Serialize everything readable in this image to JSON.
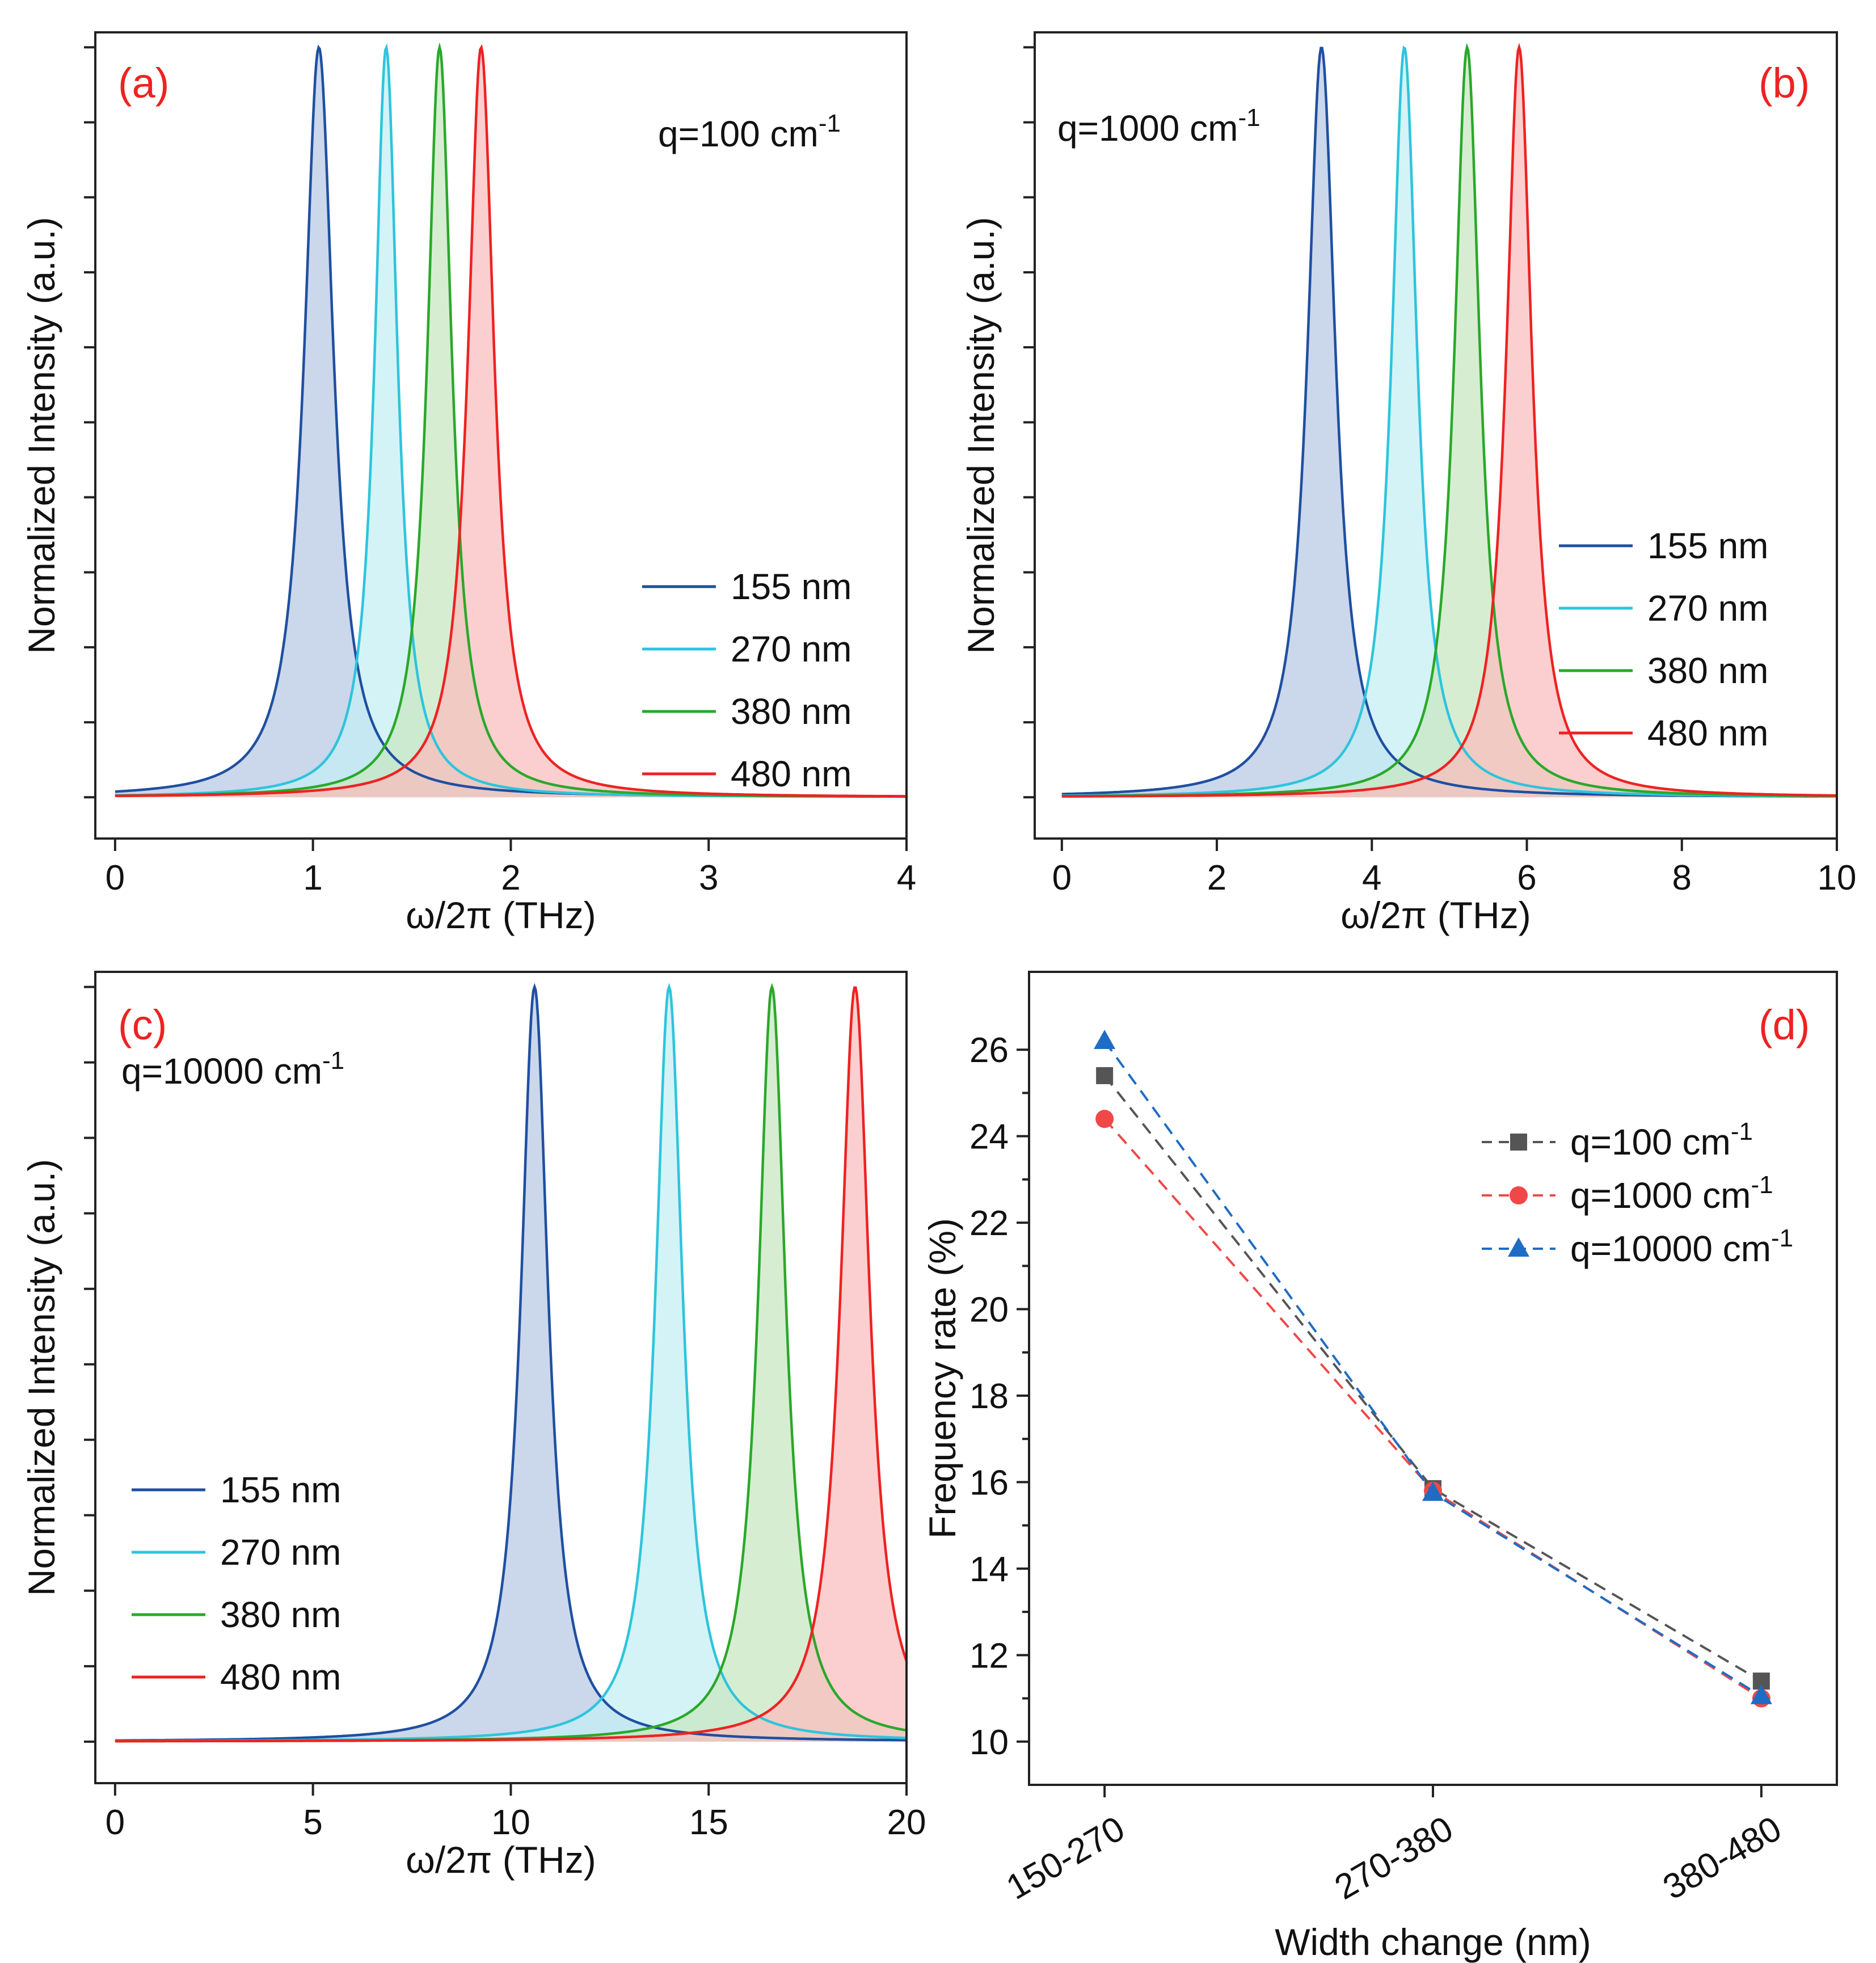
{
  "chart_data": [
    {
      "type": "line",
      "panel": "(a)",
      "annotation": {
        "base": "q=100 cm",
        "sup": "-1"
      },
      "xlabel": "ω/2π (THz)",
      "ylabel": "Normalized Intensity (a.u.)",
      "xlim": [
        -0.1,
        4.0
      ],
      "ylim": [
        -0.055,
        1.02
      ],
      "x_ticks": [
        "0",
        "1",
        "2",
        "3",
        "4"
      ],
      "x_tick_values": [
        0,
        1,
        2,
        3,
        4
      ],
      "legend_position": "bottom-right",
      "series": [
        {
          "name": "155 nm",
          "color": "#1f4fa0",
          "fill": "#b7c8e3",
          "peak": 1.03,
          "hwhm": 0.09
        },
        {
          "name": "270 nm",
          "color": "#2ec4dc",
          "fill": "#c4eef4",
          "peak": 1.37,
          "hwhm": 0.07
        },
        {
          "name": "380 nm",
          "color": "#2aa82a",
          "fill": "#c8e6c0",
          "peak": 1.64,
          "hwhm": 0.075
        },
        {
          "name": "480 nm",
          "color": "#ee2222",
          "fill": "#f9bcbc",
          "peak": 1.85,
          "hwhm": 0.08
        }
      ]
    },
    {
      "type": "line",
      "panel": "(b)",
      "annotation": {
        "base": "q=1000 cm",
        "sup": "-1"
      },
      "xlabel": "ω/2π (THz)",
      "ylabel": "Normalized Intensity (a.u.)",
      "xlim": [
        -0.35,
        10.0
      ],
      "ylim": [
        -0.055,
        1.02
      ],
      "x_ticks": [
        "0",
        "2",
        "4",
        "6",
        "8",
        "10"
      ],
      "x_tick_values": [
        0,
        2,
        4,
        6,
        8,
        10
      ],
      "legend_position": "center-right",
      "series": [
        {
          "name": "155 nm",
          "color": "#1f4fa0",
          "fill": "#b7c8e3",
          "peak": 3.35,
          "hwhm": 0.22
        },
        {
          "name": "270 nm",
          "color": "#2ec4dc",
          "fill": "#c4eef4",
          "peak": 4.42,
          "hwhm": 0.2
        },
        {
          "name": "380 nm",
          "color": "#2aa82a",
          "fill": "#c8e6c0",
          "peak": 5.23,
          "hwhm": 0.2
        },
        {
          "name": "480 nm",
          "color": "#ee2222",
          "fill": "#f9bcbc",
          "peak": 5.9,
          "hwhm": 0.2
        }
      ]
    },
    {
      "type": "line",
      "panel": "(c)",
      "annotation": {
        "base": "q=10000 cm",
        "sup": "-1"
      },
      "xlabel": "ω/2π (THz)",
      "ylabel": "Normalized Intensity (a.u.)",
      "xlim": [
        -0.5,
        20.0
      ],
      "ylim": [
        -0.055,
        1.02
      ],
      "x_ticks": [
        "0",
        "5",
        "10",
        "15",
        "20"
      ],
      "x_tick_values": [
        0,
        5,
        10,
        15,
        20
      ],
      "legend_position": "bottom-left",
      "series": [
        {
          "name": "155 nm",
          "color": "#1f4fa0",
          "fill": "#b7c8e3",
          "peak": 10.6,
          "hwhm": 0.42
        },
        {
          "name": "270 nm",
          "color": "#2ec4dc",
          "fill": "#c4eef4",
          "peak": 14.0,
          "hwhm": 0.42
        },
        {
          "name": "380 nm",
          "color": "#2aa82a",
          "fill": "#c8e6c0",
          "peak": 16.6,
          "hwhm": 0.42
        },
        {
          "name": "480 nm",
          "color": "#ee2222",
          "fill": "#f9bcbc",
          "peak": 18.7,
          "hwhm": 0.45
        }
      ]
    },
    {
      "type": "line",
      "panel": "(d)",
      "xlabel": "Width change (nm)",
      "ylabel": "Frequency rate (%)",
      "categories": [
        "150-270",
        "270-380",
        "380-480"
      ],
      "cat_positions": [
        0,
        1,
        2
      ],
      "xlim": [
        -0.23,
        2.23
      ],
      "ylim": [
        9.0,
        27.8
      ],
      "y_ticks": [
        10,
        12,
        14,
        16,
        18,
        20,
        22,
        24,
        26
      ],
      "legend_position": "top-right",
      "series": [
        {
          "name": "q=100 cm",
          "sup": "-1",
          "color": "#555555",
          "marker": "square",
          "values": [
            25.4,
            15.85,
            11.4
          ]
        },
        {
          "name": "q=1000 cm",
          "sup": "-1",
          "color": "#f04848",
          "marker": "circle",
          "values": [
            24.4,
            15.8,
            11.0
          ]
        },
        {
          "name": "q=10000 cm",
          "sup": "-1",
          "color": "#1f6cc4",
          "marker": "triangle",
          "values": [
            26.2,
            15.75,
            11.05
          ]
        }
      ]
    }
  ]
}
